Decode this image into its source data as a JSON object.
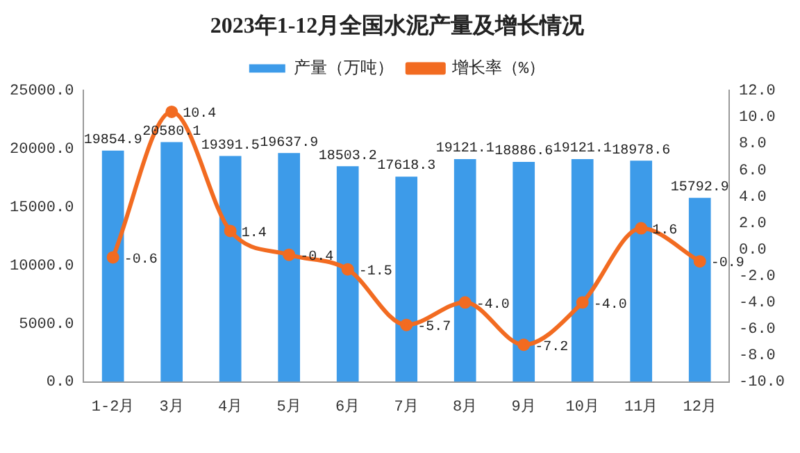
{
  "chart_data": {
    "type": "bar",
    "title": "2023年1-12月全国水泥产量及增长情况",
    "categories": [
      "1-2月",
      "3月",
      "4月",
      "5月",
      "6月",
      "7月",
      "8月",
      "9月",
      "10月",
      "11月",
      "12月"
    ],
    "series": [
      {
        "name": "产量（万吨）",
        "color": "#3d9be9",
        "values": [
          19854.9,
          20580.1,
          19391.5,
          19637.9,
          18503.2,
          17618.3,
          19121.1,
          18886.6,
          19121.1,
          18978.6,
          15792.9
        ],
        "value_labels": [
          "19854.9",
          "20580.1",
          "19391.5",
          "19637.9",
          "18503.2",
          "17618.3",
          "19121.1",
          "18886.6",
          "19121.1",
          "18978.6",
          "15792.9"
        ]
      },
      {
        "name": "增长率（%）",
        "type": "line",
        "axis": "y2",
        "color": "#f26b21",
        "marker": "circle",
        "values": [
          -0.6,
          10.4,
          1.4,
          -0.4,
          -1.5,
          -5.7,
          -4.0,
          -7.2,
          -4.0,
          1.6,
          -0.9
        ],
        "value_labels": [
          "-0.6",
          "10.4",
          "1.4",
          "-0.4",
          "-1.5",
          "-5.7",
          "-4.0",
          "-7.2",
          "-4.0",
          "1.6",
          "-0.9"
        ]
      }
    ],
    "ylim": [
      0,
      25000
    ],
    "yticks": [
      {
        "value": 0,
        "label": "0.0"
      },
      {
        "value": 5000,
        "label": "5000.0"
      },
      {
        "value": 10000,
        "label": "10000.0"
      },
      {
        "value": 15000,
        "label": "15000.0"
      },
      {
        "value": 20000,
        "label": "20000.0"
      },
      {
        "value": 25000,
        "label": "25000.0"
      }
    ],
    "y2lim": [
      -10,
      12
    ],
    "y2ticks": [
      {
        "value": -10,
        "label": "-10.0"
      },
      {
        "value": -8,
        "label": "-8.0"
      },
      {
        "value": -6,
        "label": "-6.0"
      },
      {
        "value": -4,
        "label": "-4.0"
      },
      {
        "value": -2,
        "label": "-2.0"
      },
      {
        "value": 0,
        "label": "0.0"
      },
      {
        "value": 2,
        "label": "2.0"
      },
      {
        "value": 4,
        "label": "4.0"
      },
      {
        "value": 6,
        "label": "6.0"
      },
      {
        "value": 8,
        "label": "8.0"
      },
      {
        "value": 10,
        "label": "10.0"
      },
      {
        "value": 12,
        "label": "12.0"
      }
    ],
    "grid": false,
    "legend": "top"
  }
}
